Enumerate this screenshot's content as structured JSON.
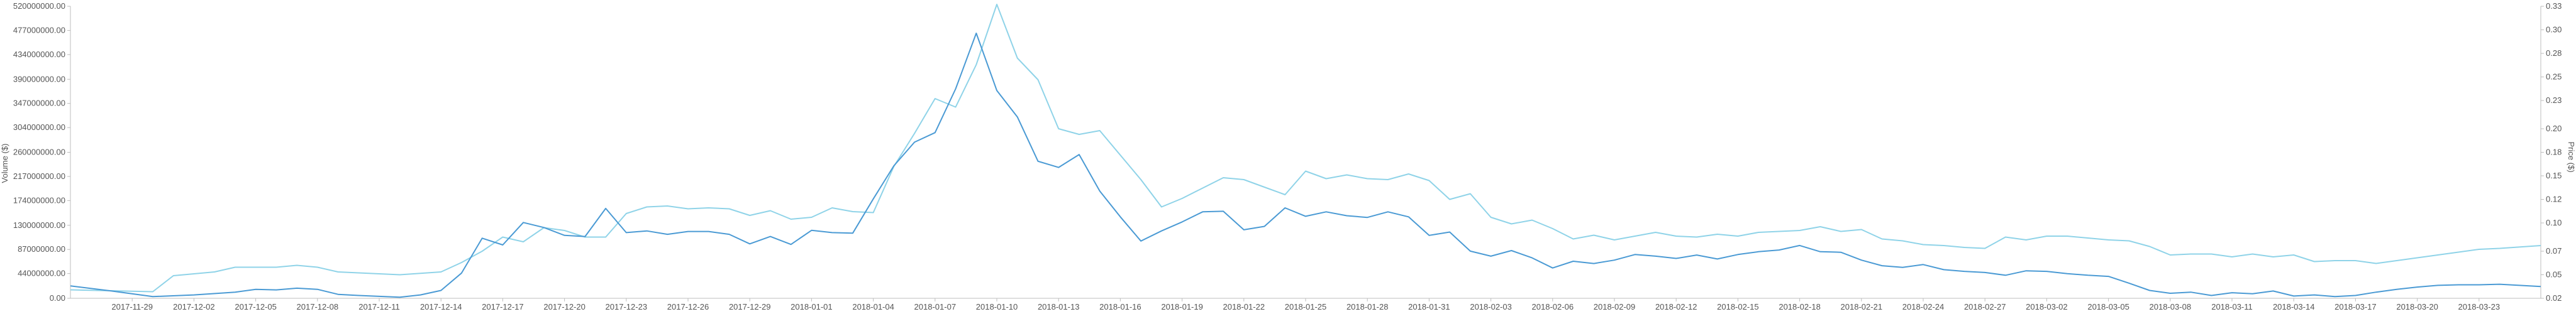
{
  "chart_data": {
    "type": "line",
    "left_axis": {
      "label": "Volume ($)",
      "range": [
        0,
        520000000
      ],
      "ticks": [
        "520000000.00",
        "477000000.00",
        "434000000.00",
        "390000000.00",
        "347000000.00",
        "304000000.00",
        "260000000.00",
        "217000000.00",
        "174000000.00",
        "130000000.00",
        "87000000.00",
        "44000000.00",
        "0.00"
      ],
      "tick_values": [
        520000000,
        477000000,
        434000000,
        390000000,
        347000000,
        304000000,
        260000000,
        217000000,
        174000000,
        130000000,
        87000000,
        44000000,
        0
      ]
    },
    "right_axis": {
      "label": "Price ($)",
      "range": [
        0.02,
        0.33
      ],
      "ticks": [
        "0.33",
        "0.30",
        "0.28",
        "0.25",
        "0.23",
        "0.20",
        "0.18",
        "0.15",
        "0.12",
        "0.10",
        "0.07",
        "0.05",
        "0.02"
      ],
      "tick_values": [
        0.33,
        0.305,
        0.28,
        0.255,
        0.23,
        0.2,
        0.175,
        0.15,
        0.125,
        0.1,
        0.07,
        0.045,
        0.02
      ]
    },
    "x_range": [
      "2017-11-26",
      "2018-03-26"
    ],
    "x_tick_labels": [
      "2017-11-29",
      "2017-12-02",
      "2017-12-05",
      "2017-12-08",
      "2017-12-11",
      "2017-12-14",
      "2017-12-17",
      "2017-12-20",
      "2017-12-23",
      "2017-12-26",
      "2017-12-29",
      "2018-01-01",
      "2018-01-04",
      "2018-01-07",
      "2018-01-10",
      "2018-01-13",
      "2018-01-16",
      "2018-01-19",
      "2018-01-22",
      "2018-01-25",
      "2018-01-28",
      "2018-01-31",
      "2018-02-03",
      "2018-02-06",
      "2018-02-09",
      "2018-02-12",
      "2018-02-15",
      "2018-02-18",
      "2018-02-21",
      "2018-02-24",
      "2018-02-27",
      "2018-03-02",
      "2018-03-05",
      "2018-03-08",
      "2018-03-11",
      "2018-03-14",
      "2018-03-17",
      "2018-03-20",
      "2018-03-23"
    ],
    "series": [
      {
        "name": "Volume",
        "axis": "left",
        "color": "#4a9ad4",
        "points": [
          [
            "2017-11-26",
            22000000
          ],
          [
            "2017-11-28",
            13000000
          ],
          [
            "2017-11-30",
            3000000
          ],
          [
            "2017-12-02",
            6000000
          ],
          [
            "2017-12-04",
            11000000
          ],
          [
            "2017-12-05",
            16000000
          ],
          [
            "2017-12-06",
            15000000
          ],
          [
            "2017-12-07",
            18000000
          ],
          [
            "2017-12-08",
            16000000
          ],
          [
            "2017-12-09",
            7000000
          ],
          [
            "2017-12-10",
            5000000
          ],
          [
            "2017-12-12",
            2000000
          ],
          [
            "2017-12-13",
            6000000
          ],
          [
            "2017-12-14",
            14000000
          ],
          [
            "2017-12-15",
            45000000
          ],
          [
            "2017-12-16",
            107000000
          ],
          [
            "2017-12-17",
            95000000
          ],
          [
            "2017-12-18",
            135000000
          ],
          [
            "2017-12-19",
            126000000
          ],
          [
            "2017-12-20",
            112000000
          ],
          [
            "2017-12-21",
            110000000
          ],
          [
            "2017-12-22",
            160000000
          ],
          [
            "2017-12-23",
            117000000
          ],
          [
            "2017-12-24",
            120000000
          ],
          [
            "2017-12-25",
            114000000
          ],
          [
            "2017-12-26",
            119000000
          ],
          [
            "2017-12-27",
            119000000
          ],
          [
            "2017-12-28",
            114000000
          ],
          [
            "2017-12-29",
            97000000
          ],
          [
            "2017-12-30",
            110000000
          ],
          [
            "2017-12-31",
            96000000
          ],
          [
            "2018-01-01",
            121000000
          ],
          [
            "2018-01-02",
            117000000
          ],
          [
            "2018-01-03",
            116000000
          ],
          [
            "2018-01-04",
            177000000
          ],
          [
            "2018-01-05",
            236000000
          ],
          [
            "2018-01-06",
            278000000
          ],
          [
            "2018-01-07",
            295000000
          ],
          [
            "2018-01-08",
            373000000
          ],
          [
            "2018-01-09",
            472000000
          ],
          [
            "2018-01-10",
            370000000
          ],
          [
            "2018-01-11",
            323000000
          ],
          [
            "2018-01-12",
            244000000
          ],
          [
            "2018-01-13",
            233000000
          ],
          [
            "2018-01-14",
            256000000
          ],
          [
            "2018-01-15",
            191000000
          ],
          [
            "2018-01-16",
            145000000
          ],
          [
            "2018-01-17",
            102000000
          ],
          [
            "2018-01-18",
            120000000
          ],
          [
            "2018-01-19",
            136000000
          ],
          [
            "2018-01-20",
            154000000
          ],
          [
            "2018-01-21",
            155000000
          ],
          [
            "2018-01-22",
            122000000
          ],
          [
            "2018-01-23",
            128000000
          ],
          [
            "2018-01-24",
            161000000
          ],
          [
            "2018-01-25",
            146000000
          ],
          [
            "2018-01-26",
            154000000
          ],
          [
            "2018-01-27",
            147000000
          ],
          [
            "2018-01-28",
            144000000
          ],
          [
            "2018-01-29",
            154000000
          ],
          [
            "2018-01-30",
            145000000
          ],
          [
            "2018-01-31",
            112000000
          ],
          [
            "2018-02-01",
            118000000
          ],
          [
            "2018-02-02",
            84000000
          ],
          [
            "2018-02-03",
            75000000
          ],
          [
            "2018-02-04",
            85000000
          ],
          [
            "2018-02-05",
            72000000
          ],
          [
            "2018-02-06",
            54000000
          ],
          [
            "2018-02-07",
            66000000
          ],
          [
            "2018-02-08",
            62000000
          ],
          [
            "2018-02-09",
            68000000
          ],
          [
            "2018-02-10",
            78000000
          ],
          [
            "2018-02-11",
            75000000
          ],
          [
            "2018-02-12",
            71000000
          ],
          [
            "2018-02-13",
            77000000
          ],
          [
            "2018-02-14",
            70000000
          ],
          [
            "2018-02-15",
            78000000
          ],
          [
            "2018-02-16",
            83000000
          ],
          [
            "2018-02-17",
            86000000
          ],
          [
            "2018-02-18",
            94000000
          ],
          [
            "2018-02-19",
            83000000
          ],
          [
            "2018-02-20",
            82000000
          ],
          [
            "2018-02-21",
            68000000
          ],
          [
            "2018-02-22",
            58000000
          ],
          [
            "2018-02-23",
            55000000
          ],
          [
            "2018-02-24",
            60000000
          ],
          [
            "2018-02-25",
            51000000
          ],
          [
            "2018-02-26",
            48000000
          ],
          [
            "2018-02-27",
            46000000
          ],
          [
            "2018-02-28",
            41000000
          ],
          [
            "2018-03-01",
            49000000
          ],
          [
            "2018-03-02",
            48000000
          ],
          [
            "2018-03-03",
            44000000
          ],
          [
            "2018-03-04",
            41000000
          ],
          [
            "2018-03-05",
            39000000
          ],
          [
            "2018-03-06",
            27000000
          ],
          [
            "2018-03-07",
            14000000
          ],
          [
            "2018-03-08",
            9000000
          ],
          [
            "2018-03-09",
            11000000
          ],
          [
            "2018-03-10",
            5000000
          ],
          [
            "2018-03-11",
            10000000
          ],
          [
            "2018-03-12",
            8000000
          ],
          [
            "2018-03-13",
            13000000
          ],
          [
            "2018-03-14",
            4000000
          ],
          [
            "2018-03-15",
            6000000
          ],
          [
            "2018-03-16",
            3000000
          ],
          [
            "2018-03-17",
            5000000
          ],
          [
            "2018-03-18",
            11000000
          ],
          [
            "2018-03-19",
            16000000
          ],
          [
            "2018-03-20",
            20000000
          ],
          [
            "2018-03-21",
            23000000
          ],
          [
            "2018-03-22",
            24000000
          ],
          [
            "2018-03-23",
            24000000
          ],
          [
            "2018-03-24",
            25000000
          ],
          [
            "2018-03-26",
            21000000
          ]
        ]
      },
      {
        "name": "Price",
        "axis": "right",
        "color": "#8fd3e8",
        "points": [
          [
            "2017-11-26",
            0.029
          ],
          [
            "2017-11-28",
            0.028
          ],
          [
            "2017-11-30",
            0.027
          ],
          [
            "2017-12-01",
            0.044
          ],
          [
            "2017-12-03",
            0.048
          ],
          [
            "2017-12-04",
            0.053
          ],
          [
            "2017-12-06",
            0.053
          ],
          [
            "2017-12-07",
            0.055
          ],
          [
            "2017-12-08",
            0.053
          ],
          [
            "2017-12-09",
            0.048
          ],
          [
            "2017-12-10",
            0.047
          ],
          [
            "2017-12-12",
            0.045
          ],
          [
            "2017-12-14",
            0.048
          ],
          [
            "2017-12-15",
            0.058
          ],
          [
            "2017-12-16",
            0.07
          ],
          [
            "2017-12-17",
            0.085
          ],
          [
            "2017-12-18",
            0.08
          ],
          [
            "2017-12-19",
            0.095
          ],
          [
            "2017-12-20",
            0.092
          ],
          [
            "2017-12-21",
            0.085
          ],
          [
            "2017-12-22",
            0.085
          ],
          [
            "2017-12-23",
            0.11
          ],
          [
            "2017-12-24",
            0.117
          ],
          [
            "2017-12-25",
            0.118
          ],
          [
            "2017-12-26",
            0.115
          ],
          [
            "2017-12-27",
            0.116
          ],
          [
            "2017-12-28",
            0.115
          ],
          [
            "2017-12-29",
            0.108
          ],
          [
            "2017-12-30",
            0.113
          ],
          [
            "2017-12-31",
            0.104
          ],
          [
            "2018-01-01",
            0.106
          ],
          [
            "2018-01-02",
            0.116
          ],
          [
            "2018-01-03",
            0.112
          ],
          [
            "2018-01-04",
            0.111
          ],
          [
            "2018-01-05",
            0.16
          ],
          [
            "2018-01-06",
            0.195
          ],
          [
            "2018-01-07",
            0.232
          ],
          [
            "2018-01-08",
            0.223
          ],
          [
            "2018-01-09",
            0.268
          ],
          [
            "2018-01-10",
            0.332
          ],
          [
            "2018-01-11",
            0.275
          ],
          [
            "2018-01-12",
            0.252
          ],
          [
            "2018-01-13",
            0.2
          ],
          [
            "2018-01-14",
            0.194
          ],
          [
            "2018-01-15",
            0.198
          ],
          [
            "2018-01-16",
            0.172
          ],
          [
            "2018-01-17",
            0.146
          ],
          [
            "2018-01-18",
            0.117
          ],
          [
            "2018-01-19",
            0.126
          ],
          [
            "2018-01-20",
            0.137
          ],
          [
            "2018-01-21",
            0.148
          ],
          [
            "2018-01-22",
            0.146
          ],
          [
            "2018-01-23",
            0.138
          ],
          [
            "2018-01-24",
            0.13
          ],
          [
            "2018-01-25",
            0.155
          ],
          [
            "2018-01-26",
            0.147
          ],
          [
            "2018-01-27",
            0.151
          ],
          [
            "2018-01-28",
            0.147
          ],
          [
            "2018-01-29",
            0.146
          ],
          [
            "2018-01-30",
            0.152
          ],
          [
            "2018-01-31",
            0.145
          ],
          [
            "2018-02-01",
            0.125
          ],
          [
            "2018-02-02",
            0.131
          ],
          [
            "2018-02-03",
            0.106
          ],
          [
            "2018-02-04",
            0.099
          ],
          [
            "2018-02-05",
            0.103
          ],
          [
            "2018-02-06",
            0.094
          ],
          [
            "2018-02-07",
            0.083
          ],
          [
            "2018-02-08",
            0.087
          ],
          [
            "2018-02-09",
            0.082
          ],
          [
            "2018-02-10",
            0.086
          ],
          [
            "2018-02-11",
            0.09
          ],
          [
            "2018-02-12",
            0.086
          ],
          [
            "2018-02-13",
            0.085
          ],
          [
            "2018-02-14",
            0.088
          ],
          [
            "2018-02-15",
            0.086
          ],
          [
            "2018-02-16",
            0.09
          ],
          [
            "2018-02-17",
            0.091
          ],
          [
            "2018-02-18",
            0.092
          ],
          [
            "2018-02-19",
            0.096
          ],
          [
            "2018-02-20",
            0.091
          ],
          [
            "2018-02-21",
            0.093
          ],
          [
            "2018-02-22",
            0.083
          ],
          [
            "2018-02-23",
            0.081
          ],
          [
            "2018-02-24",
            0.077
          ],
          [
            "2018-02-25",
            0.076
          ],
          [
            "2018-02-26",
            0.074
          ],
          [
            "2018-02-27",
            0.073
          ],
          [
            "2018-02-28",
            0.085
          ],
          [
            "2018-03-01",
            0.082
          ],
          [
            "2018-03-02",
            0.086
          ],
          [
            "2018-03-03",
            0.086
          ],
          [
            "2018-03-04",
            0.084
          ],
          [
            "2018-03-05",
            0.082
          ],
          [
            "2018-03-06",
            0.081
          ],
          [
            "2018-03-07",
            0.075
          ],
          [
            "2018-03-08",
            0.066
          ],
          [
            "2018-03-09",
            0.067
          ],
          [
            "2018-03-10",
            0.067
          ],
          [
            "2018-03-11",
            0.064
          ],
          [
            "2018-03-12",
            0.067
          ],
          [
            "2018-03-13",
            0.064
          ],
          [
            "2018-03-14",
            0.066
          ],
          [
            "2018-03-15",
            0.059
          ],
          [
            "2018-03-16",
            0.06
          ],
          [
            "2018-03-17",
            0.06
          ],
          [
            "2018-03-18",
            0.057
          ],
          [
            "2018-03-19",
            0.06
          ],
          [
            "2018-03-20",
            0.063
          ],
          [
            "2018-03-21",
            0.066
          ],
          [
            "2018-03-22",
            0.069
          ],
          [
            "2018-03-23",
            0.072
          ],
          [
            "2018-03-24",
            0.073
          ],
          [
            "2018-03-26",
            0.076
          ]
        ]
      }
    ]
  }
}
